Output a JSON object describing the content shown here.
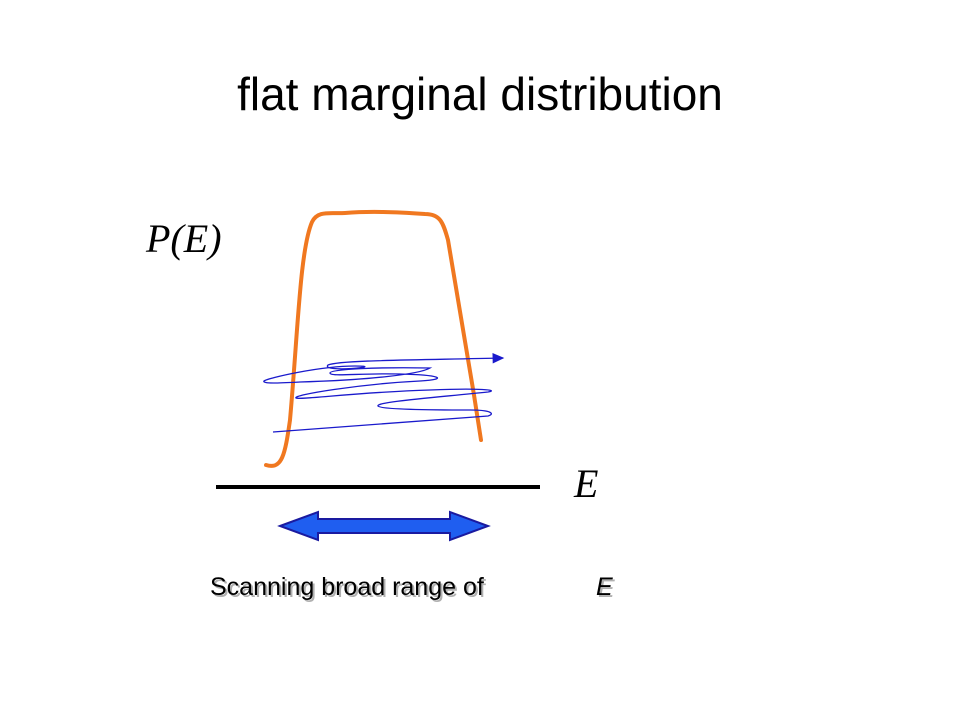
{
  "title": "flat marginal distribution",
  "y_label": "P(E)",
  "x_label": "E",
  "caption": {
    "text": "Scanning broad range  of",
    "variable": "E"
  }
}
